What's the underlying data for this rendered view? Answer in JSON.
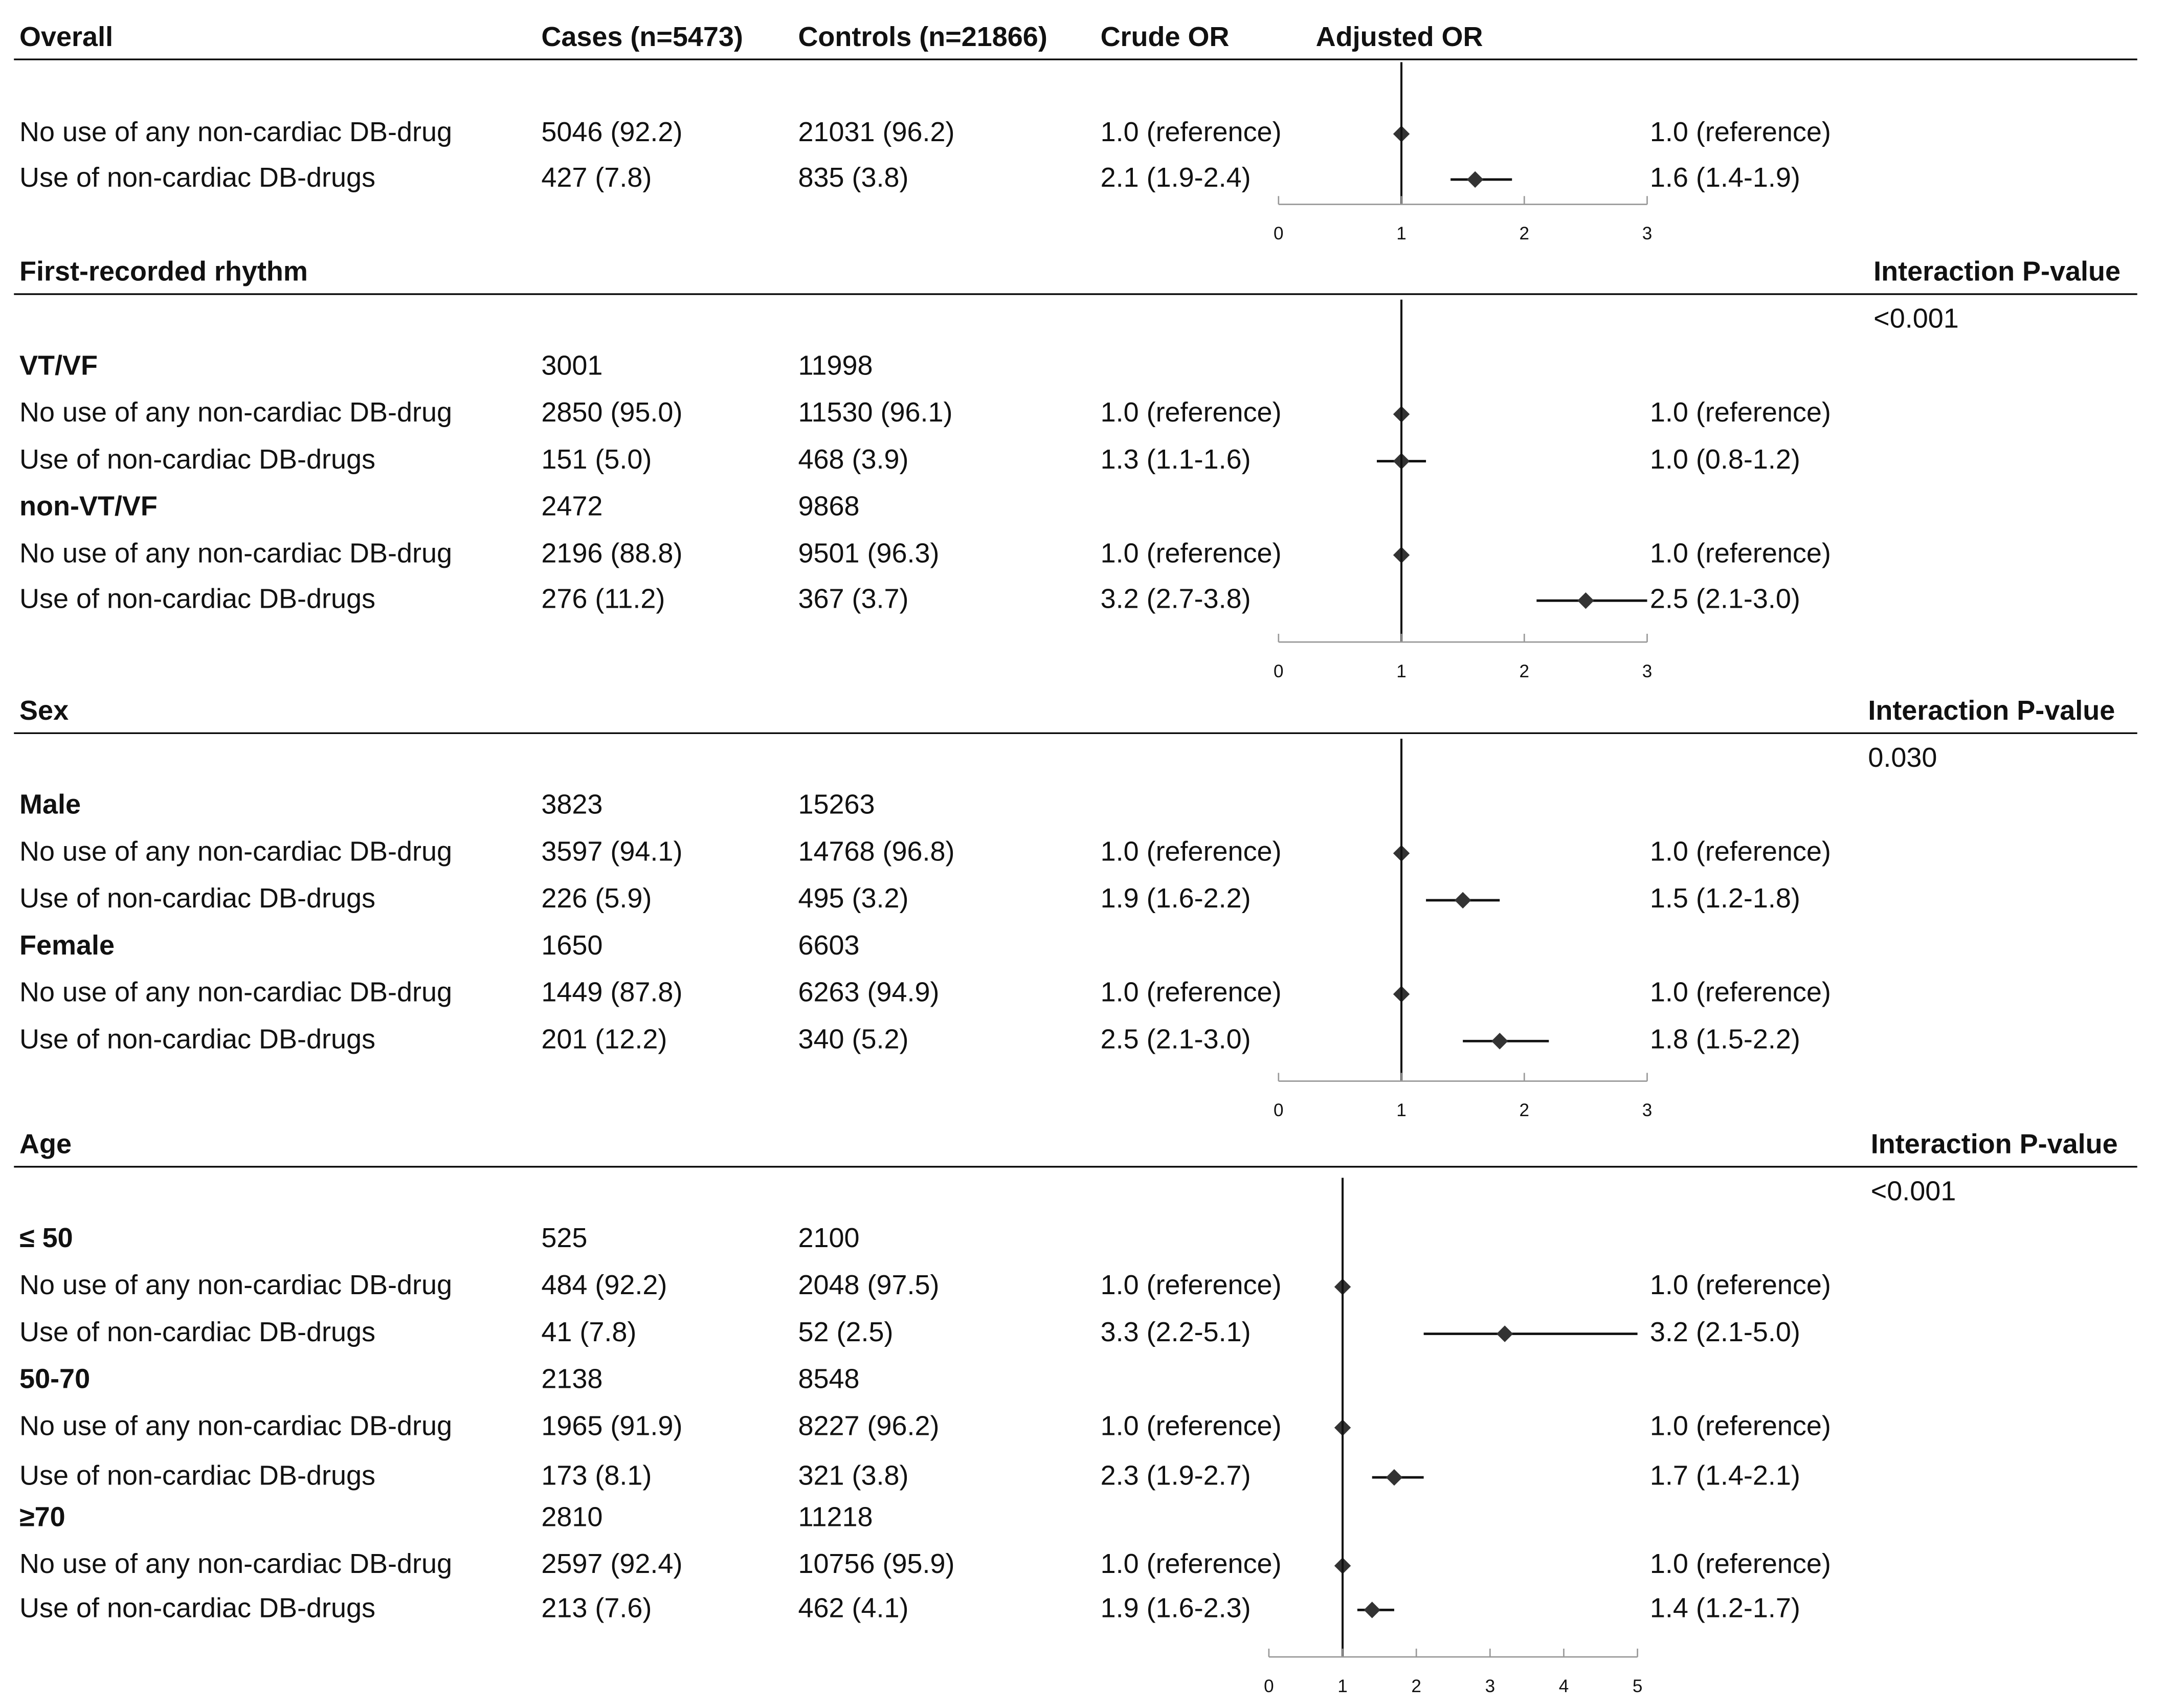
{
  "chart_data": [
    {
      "type": "forest",
      "title": "Overall",
      "columns": [
        "Cases (n=5473)",
        "Controls (n=21866)",
        "Crude OR",
        "Adjusted OR"
      ],
      "rows": [
        {
          "label": "No use of any non-cardiac DB-drug",
          "cases": "5046 (92.2)",
          "controls": "21031 (96.2)",
          "crude": "1.0 (reference)",
          "adjusted": "1.0 (reference)",
          "or": 1
        },
        {
          "label": "Use of non-cardiac DB-drugs",
          "cases": "427 (7.8)",
          "controls": "835 (3.8)",
          "crude": "2.1 (1.9-2.4)",
          "adjusted": "1.6 (1.4-1.9)",
          "or": 1.6,
          "lo": 1.4,
          "hi": 1.9
        }
      ],
      "ref_line": 1,
      "xlim": [
        0,
        3
      ],
      "xticks": [
        0,
        1,
        2,
        3
      ]
    },
    {
      "type": "forest",
      "title": "First-recorded rhythm",
      "interaction": {
        "label": "Interaction P-value",
        "value": "<0.001"
      },
      "rows": [
        {
          "label": "VT/VF",
          "bold": true,
          "cases": "3001",
          "controls": "11998"
        },
        {
          "label": "No use of any non-cardiac DB-drug",
          "cases": "2850 (95.0)",
          "controls": "11530 (96.1)",
          "crude": "1.0 (reference)",
          "adjusted": "1.0 (reference)",
          "or": 1
        },
        {
          "label": "Use of non-cardiac DB-drugs",
          "cases": "151 (5.0)",
          "controls": "468 (3.9)",
          "crude": "1.3 (1.1-1.6)",
          "adjusted": "1.0 (0.8-1.2)",
          "or": 1.0,
          "lo": 0.8,
          "hi": 1.2
        },
        {
          "label": "non-VT/VF",
          "bold": true,
          "cases": "2472",
          "controls": "9868"
        },
        {
          "label": "No use of any non-cardiac DB-drug",
          "cases": "2196 (88.8)",
          "controls": "9501 (96.3)",
          "crude": "1.0 (reference)",
          "adjusted": "1.0 (reference)",
          "or": 1
        },
        {
          "label": "Use of non-cardiac DB-drugs",
          "cases": "276 (11.2)",
          "controls": "367 (3.7)",
          "crude": "3.2 (2.7-3.8)",
          "adjusted": "2.5 (2.1-3.0)",
          "or": 2.5,
          "lo": 2.1,
          "hi": 3.0
        }
      ],
      "ref_line": 1,
      "xlim": [
        0,
        3
      ],
      "xticks": [
        0,
        1,
        2,
        3
      ]
    },
    {
      "type": "forest",
      "title": "Sex",
      "interaction": {
        "label": "Interaction P-value",
        "value": "0.030"
      },
      "rows": [
        {
          "label": "Male",
          "bold": true,
          "cases": "3823",
          "controls": "15263"
        },
        {
          "label": "No use of any non-cardiac DB-drug",
          "cases": "3597 (94.1)",
          "controls": "14768 (96.8)",
          "crude": "1.0 (reference)",
          "adjusted": "1.0 (reference)",
          "or": 1
        },
        {
          "label": "Use of non-cardiac DB-drugs",
          "cases": "226 (5.9)",
          "controls": "495 (3.2)",
          "crude": "1.9 (1.6-2.2)",
          "adjusted": "1.5 (1.2-1.8)",
          "or": 1.5,
          "lo": 1.2,
          "hi": 1.8
        },
        {
          "label": "Female",
          "bold": true,
          "cases": "1650",
          "controls": "6603"
        },
        {
          "label": "No use of any non-cardiac DB-drug",
          "cases": "1449 (87.8)",
          "controls": "6263 (94.9)",
          "crude": "1.0 (reference)",
          "adjusted": "1.0 (reference)",
          "or": 1
        },
        {
          "label": "Use of non-cardiac DB-drugs",
          "cases": "201 (12.2)",
          "controls": "340 (5.2)",
          "crude": "2.5 (2.1-3.0)",
          "adjusted": "1.8 (1.5-2.2)",
          "or": 1.8,
          "lo": 1.5,
          "hi": 2.2
        }
      ],
      "ref_line": 1,
      "xlim": [
        0,
        3
      ],
      "xticks": [
        0,
        1,
        2,
        3
      ]
    },
    {
      "type": "forest",
      "title": "Age",
      "interaction": {
        "label": "Interaction P-value",
        "value": "<0.001"
      },
      "rows": [
        {
          "label": "≤ 50",
          "bold": true,
          "cases": "525",
          "controls": "2100"
        },
        {
          "label": "No use of any non-cardiac DB-drug",
          "cases": "484 (92.2)",
          "controls": "2048 (97.5)",
          "crude": "1.0 (reference)",
          "adjusted": "1.0 (reference)",
          "or": 1
        },
        {
          "label": "Use of non-cardiac DB-drugs",
          "cases": "41 (7.8)",
          "controls": "52 (2.5)",
          "crude": "3.3 (2.2-5.1)",
          "adjusted": "3.2 (2.1-5.0)",
          "or": 3.2,
          "lo": 2.1,
          "hi": 5.0
        },
        {
          "label": "50-70",
          "bold": true,
          "cases": "2138",
          "controls": "8548"
        },
        {
          "label": "No use of any non-cardiac DB-drug",
          "cases": "1965 (91.9)",
          "controls": "8227 (96.2)",
          "crude": "1.0 (reference)",
          "adjusted": "1.0 (reference)",
          "or": 1
        },
        {
          "label": "Use of non-cardiac DB-drugs",
          "cases": "173 (8.1)",
          "controls": "321 (3.8)",
          "crude": "2.3 (1.9-2.7)",
          "adjusted": "1.7 (1.4-2.1)",
          "or": 1.7,
          "lo": 1.4,
          "hi": 2.1
        },
        {
          "label": "≥70",
          "bold": true,
          "cases": "2810",
          "controls": "11218"
        },
        {
          "label": "No use of any non-cardiac DB-drug",
          "cases": "2597 (92.4)",
          "controls": "10756 (95.9)",
          "crude": "1.0 (reference)",
          "adjusted": "1.0 (reference)",
          "or": 1
        },
        {
          "label": "Use of non-cardiac DB-drugs",
          "cases": "213 (7.6)",
          "controls": "462 (4.1)",
          "crude": "1.9 (1.6-2.3)",
          "adjusted": "1.4 (1.2-1.7)",
          "or": 1.4,
          "lo": 1.2,
          "hi": 1.7
        }
      ],
      "ref_line": 1,
      "xlim": [
        0,
        5
      ],
      "xticks": [
        0,
        1,
        2,
        3,
        4,
        5
      ]
    }
  ]
}
